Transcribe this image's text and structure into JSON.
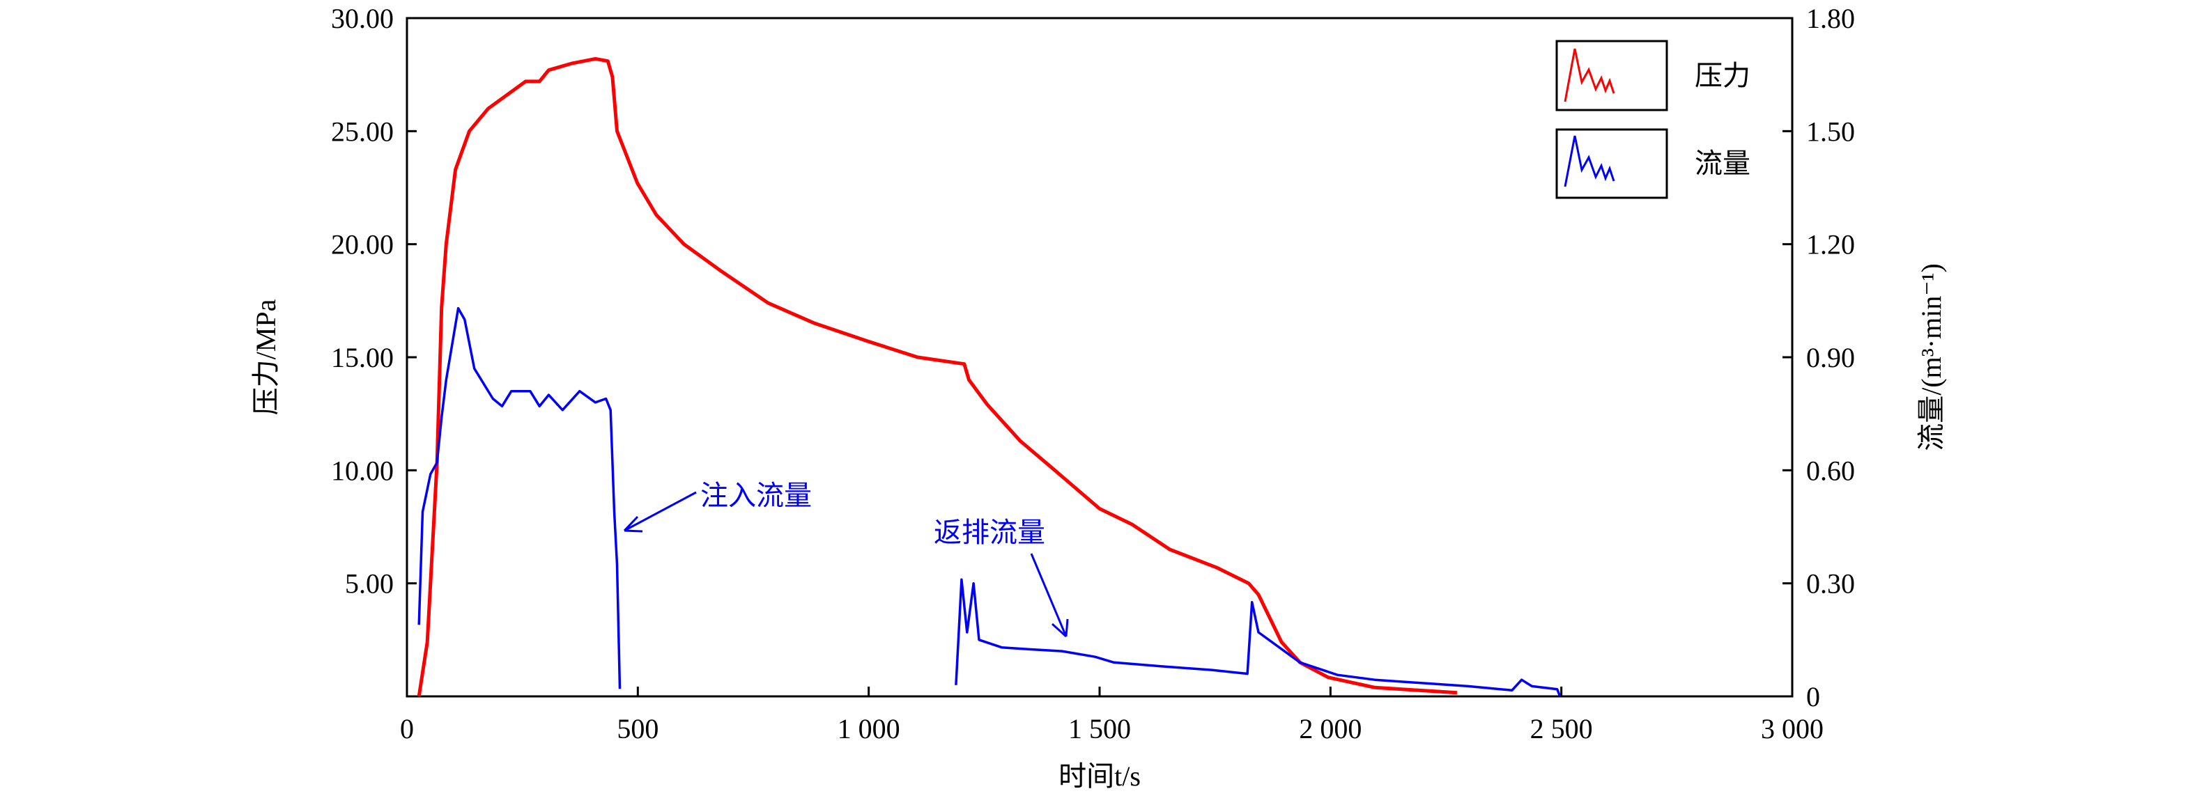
{
  "chart_data": {
    "type": "line",
    "title": "",
    "xlabel": "时间t/s",
    "ylabel": "压力/MPa",
    "y2label": "流量/(m³·min⁻¹)",
    "xlim": [
      0,
      3000
    ],
    "ylim": [
      0,
      30
    ],
    "y2lim": [
      0,
      1.8
    ],
    "grid": false,
    "legend_position": "top-right",
    "x_ticks": [
      0,
      500,
      1000,
      1500,
      2000,
      2500,
      3000
    ],
    "x_tick_labels": [
      "0",
      "500",
      "1 000",
      "1 500",
      "2 000",
      "2 500",
      "3 000"
    ],
    "y_ticks": [
      5,
      10,
      15,
      20,
      25,
      30
    ],
    "y_tick_labels": [
      "5.00",
      "10.00",
      "15.00",
      "20.00",
      "25.00",
      "30.00"
    ],
    "y2_ticks": [
      0,
      0.3,
      0.6,
      0.9,
      1.2,
      1.5,
      1.8
    ],
    "y2_tick_labels": [
      "0",
      "0.30",
      "0.60",
      "0.90",
      "1.20",
      "1.50",
      "1.80"
    ],
    "series": [
      {
        "name": "压力",
        "axis": "left",
        "color": "#ff0000",
        "x": [
          26,
          44,
          65,
          75,
          85,
          105,
          135,
          176,
          257,
          287,
          307,
          358,
          408,
          435,
          445,
          455,
          499,
          540,
          600,
          681,
          782,
          883,
          999,
          1106,
          1207,
          1217,
          1257,
          1328,
          1403,
          1500,
          1571,
          1652,
          1753,
          1823,
          1844,
          1894,
          1934,
          1995,
          2096,
          2274
        ],
        "y": [
          0,
          2.4,
          10.3,
          17.2,
          20,
          23.3,
          25,
          26,
          27.2,
          27.2,
          27.7,
          28,
          28.2,
          28.1,
          27.4,
          25,
          22.7,
          21.3,
          20,
          18.8,
          17.4,
          16.5,
          15.7,
          15.0,
          14.7,
          14.0,
          12.9,
          11.3,
          10,
          8.3,
          7.6,
          6.5,
          5.7,
          5.0,
          4.5,
          2.4,
          1.5,
          0.84,
          0.39,
          0.16
        ]
      },
      {
        "name": "流量",
        "axis": "right",
        "color": "#0000ff",
        "segments": [
          {
            "x": [
              26,
              34,
              51,
              65,
              75,
              85,
              111,
              125,
              146,
              186,
              206,
              226,
              267,
              287,
              307,
              337,
              374,
              408,
              431,
              441,
              449,
              455,
              461
            ],
            "y": [
              0.19,
              0.49,
              0.59,
              0.62,
              0.74,
              0.84,
              1.03,
              1.0,
              0.87,
              0.79,
              0.77,
              0.81,
              0.81,
              0.77,
              0.8,
              0.76,
              0.81,
              0.78,
              0.79,
              0.76,
              0.49,
              0.35,
              0.02
            ]
          },
          {
            "x": [
              1189,
              1201,
              1213,
              1227,
              1239,
              1288,
              1348,
              1419,
              1490,
              1531,
              1632,
              1743,
              1820,
              1830,
              1844,
              1934,
              2015,
              2096,
              2298,
              2393,
              2414,
              2436,
              2491,
              2497
            ],
            "y": [
              0.03,
              0.31,
              0.17,
              0.3,
              0.15,
              0.13,
              0.125,
              0.12,
              0.105,
              0.09,
              0.08,
              0.07,
              0.06,
              0.25,
              0.17,
              0.09,
              0.057,
              0.044,
              0.027,
              0.016,
              0.044,
              0.027,
              0.019,
              0
            ]
          }
        ]
      }
    ],
    "annotations": [
      {
        "text": "注入流量",
        "color": "#0000ff",
        "points_to_x": 465,
        "points_to_y2": 0.45
      },
      {
        "text": "返排流量",
        "color": "#0000ff",
        "points_to_x": 1425,
        "points_to_y2": 0.16
      }
    ]
  }
}
